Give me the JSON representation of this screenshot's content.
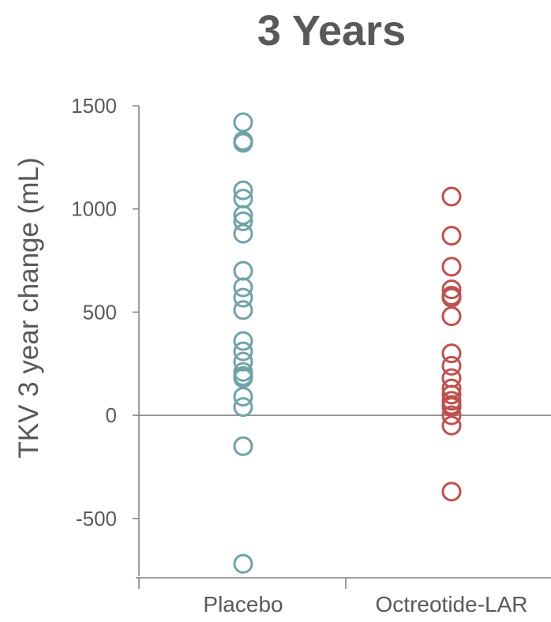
{
  "chart_data": {
    "type": "scatter",
    "title": "3 Years",
    "ylabel": "TKV 3 year change (mL)",
    "xlabel": "",
    "categories": [
      "Placebo",
      "Octreotide-LAR"
    ],
    "ylim": [
      -800,
      1500
    ],
    "yticks": [
      1500,
      1000,
      500,
      0,
      -500
    ],
    "ytick_labels": [
      "1500",
      "1000",
      "500",
      "0",
      "-500"
    ],
    "grid": false,
    "series": [
      {
        "category": "Placebo",
        "color": "#6fa3a9",
        "values": [
          1420,
          1330,
          1320,
          1090,
          1050,
          970,
          940,
          880,
          700,
          620,
          570,
          510,
          360,
          310,
          260,
          210,
          190,
          180,
          90,
          40,
          -150,
          -720
        ]
      },
      {
        "category": "Octreotide-LAR",
        "color": "#c0504d",
        "values": [
          1060,
          870,
          720,
          610,
          580,
          570,
          480,
          300,
          240,
          180,
          130,
          100,
          70,
          50,
          40,
          0,
          -50,
          -370
        ]
      }
    ]
  }
}
